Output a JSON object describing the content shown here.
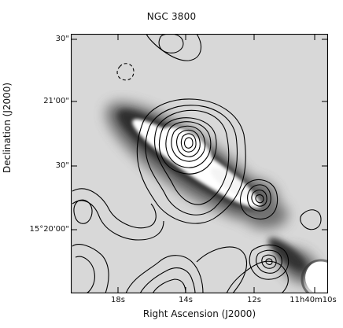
{
  "figure": {
    "title": "NGC 3800",
    "x_axis_label": "Right Ascension (J2000)",
    "y_axis_label": "Declination (J2000)",
    "y_ticks": [
      "30\"",
      "21'00\"",
      "30\"",
      "15°20'00\""
    ],
    "x_ticks": [
      "18s",
      "14s",
      "12s",
      "11h40m10s"
    ]
  },
  "colors": {
    "background_sky": "#d8d8d8",
    "galaxy_bright": "#ffffff",
    "galaxy_dark": "#555555",
    "contours": "#000000",
    "frame": "#000000"
  }
}
